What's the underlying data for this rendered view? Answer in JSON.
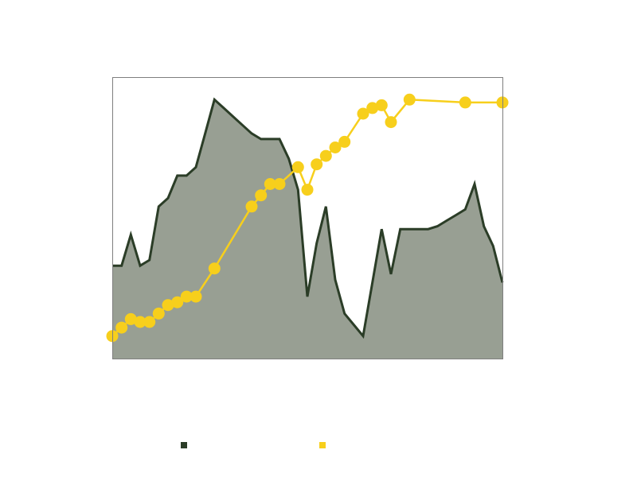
{
  "chart_data": {
    "type": "line",
    "title": "",
    "xlabel": "",
    "ylabel": "",
    "grid": false,
    "legend": "bottom",
    "xlim": [
      0,
      42
    ],
    "x": [
      0,
      1,
      2,
      3,
      4,
      5,
      6,
      7,
      8,
      9,
      10,
      11,
      12,
      13,
      14,
      15,
      16,
      17,
      18,
      19,
      20,
      21,
      22,
      23,
      24,
      25,
      26,
      27,
      28,
      29,
      30,
      31,
      32,
      33,
      34,
      35,
      36,
      37,
      38,
      39,
      40,
      41,
      42
    ],
    "series": [
      {
        "name": "",
        "style": "area",
        "color": "#2b3d27",
        "fill": "#989f93",
        "ylim": [
          0,
          100
        ],
        "values": [
          33,
          33,
          44,
          33,
          35,
          54,
          57,
          65,
          65,
          68,
          80,
          92,
          89,
          86,
          83,
          80,
          78,
          78,
          78,
          71,
          60,
          22,
          41,
          54,
          28,
          16,
          12,
          8,
          27,
          46,
          30,
          46,
          46,
          46,
          46,
          47,
          49,
          51,
          53,
          62,
          47,
          40,
          27
        ]
      },
      {
        "name": "",
        "style": "line-markers",
        "color": "#f7cf1c",
        "ylim": [
          0,
          100
        ],
        "x": [
          0,
          1,
          2,
          3,
          4,
          5,
          6,
          7,
          8,
          9,
          11,
          15,
          16,
          17,
          18,
          20,
          21,
          22,
          23,
          24,
          25,
          27,
          28,
          29,
          30,
          32,
          38,
          42
        ],
        "values": [
          8,
          11,
          14,
          13,
          13,
          16,
          19,
          20,
          22,
          22,
          32,
          54,
          58,
          62,
          62,
          68,
          60,
          69,
          72,
          75,
          77,
          87,
          89,
          90,
          84,
          92,
          91,
          91
        ]
      }
    ]
  }
}
